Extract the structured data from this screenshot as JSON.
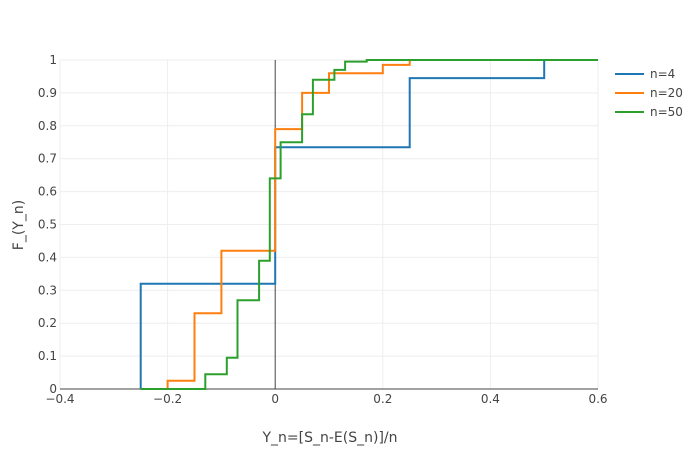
{
  "chart_data": {
    "type": "line",
    "step": true,
    "title": "",
    "xlabel": "Y_n=[S_n-E(S_n)]/n",
    "ylabel": "F_(Y_n)",
    "xlim": [
      -0.4,
      0.6
    ],
    "ylim": [
      0,
      1
    ],
    "xticks": [
      -0.4,
      -0.2,
      0,
      0.2,
      0.4,
      0.6
    ],
    "xtick_labels": [
      "−0.4",
      "−0.2",
      "0",
      "0.2",
      "0.4",
      "0.6"
    ],
    "yticks": [
      0,
      0.1,
      0.2,
      0.3,
      0.4,
      0.5,
      0.6,
      0.7,
      0.8,
      0.9,
      1
    ],
    "ytick_labels": [
      "0",
      "0.1",
      "0.2",
      "0.3",
      "0.4",
      "0.5",
      "0.6",
      "0.7",
      "0.8",
      "0.9",
      "1"
    ],
    "grid": true,
    "zero_line": true,
    "legend_position": "right",
    "series": [
      {
        "name": "n=4",
        "color": "#1f77b4",
        "x": [
          -0.25,
          -0.25,
          0,
          0.25,
          0.5,
          0.6
        ],
        "y": [
          0,
          0.32,
          0.735,
          0.945,
          1,
          1
        ]
      },
      {
        "name": "n=20",
        "color": "#ff7f0e",
        "x": [
          -0.25,
          -0.2,
          -0.15,
          -0.1,
          0,
          0.05,
          0.1,
          0.2,
          0.25,
          0.6
        ],
        "y": [
          0,
          0.025,
          0.23,
          0.42,
          0.79,
          0.9,
          0.96,
          0.985,
          1,
          1
        ]
      },
      {
        "name": "n=50",
        "color": "#2ca02c",
        "x": [
          -0.25,
          -0.13,
          -0.09,
          -0.07,
          -0.03,
          -0.01,
          0.01,
          0.05,
          0.07,
          0.11,
          0.13,
          0.17,
          0.6
        ],
        "y": [
          0,
          0.045,
          0.095,
          0.27,
          0.39,
          0.64,
          0.75,
          0.835,
          0.94,
          0.97,
          0.995,
          1,
          1
        ]
      }
    ]
  }
}
